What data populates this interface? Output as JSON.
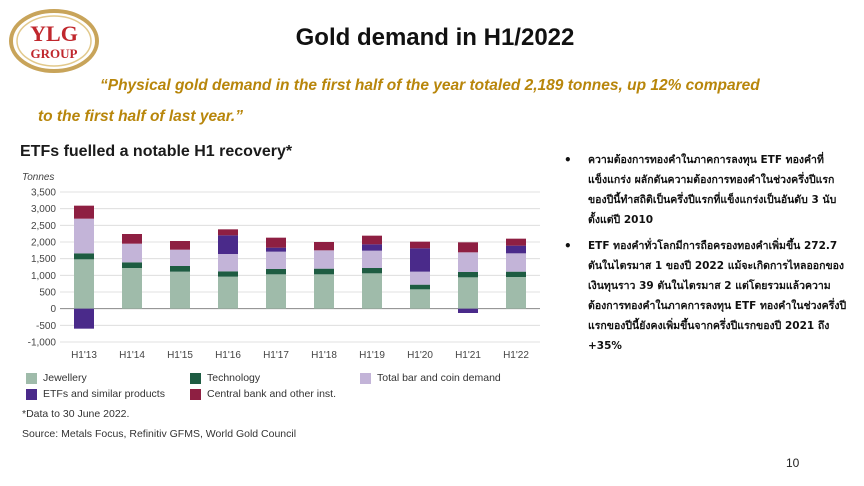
{
  "logo": {
    "line1": "YLG",
    "line2": "GROUP",
    "ring_color": "#c8a45a",
    "text_color": "#c0272d"
  },
  "header": {
    "title": "Gold demand  in H1/2022"
  },
  "quote": {
    "line1": "“Physical gold demand in the first half of the year totaled 2,189 tonnes, up 12% compared",
    "line2": "to the first half of last year.”"
  },
  "chart_title": "ETFs fuelled a notable H1 recovery*",
  "chart_data": {
    "type": "bar",
    "stacked": true,
    "ylabel": "Tonnes",
    "ylim": [
      -1000,
      3500
    ],
    "yticks": [
      3500,
      3000,
      2500,
      2000,
      1500,
      1000,
      500,
      0,
      -500,
      -1000
    ],
    "ytick_labels": [
      "3,500",
      "3,000",
      "2,500",
      "2,000",
      "1,500",
      "1,000",
      "500",
      "0",
      "-500",
      "-1,000"
    ],
    "categories": [
      "H1'13",
      "H1'14",
      "H1'15",
      "H1'16",
      "H1'17",
      "H1'18",
      "H1'19",
      "H1'20",
      "H1'21",
      "H1'22"
    ],
    "series": [
      {
        "name": "Jewellery",
        "color": "#9fbbaa",
        "values": [
          1480,
          1220,
          1110,
          960,
          1030,
          1030,
          1060,
          580,
          940,
          950
        ]
      },
      {
        "name": "Technology",
        "color": "#1e5c42",
        "values": [
          180,
          170,
          170,
          160,
          160,
          170,
          160,
          140,
          160,
          160
        ]
      },
      {
        "name": "Total bar and coin demand",
        "color": "#c3b4d8",
        "values": [
          1040,
          560,
          490,
          520,
          520,
          550,
          520,
          390,
          590,
          550
        ]
      },
      {
        "name": "ETFs and similar products",
        "color": "#4a2a8a",
        "values": [
          -600,
          0,
          0,
          560,
          120,
          0,
          190,
          700,
          -130,
          230
        ]
      },
      {
        "name": "Central bank and other inst.",
        "color": "#8e1f42",
        "values": [
          390,
          290,
          260,
          180,
          300,
          250,
          260,
          200,
          300,
          210
        ]
      }
    ],
    "grid": true
  },
  "legend": {
    "items": [
      {
        "label": "Jewellery",
        "color": "#9fbbaa"
      },
      {
        "label": "Technology",
        "color": "#1e5c42"
      },
      {
        "label": "Total bar and coin demand",
        "color": "#c3b4d8"
      },
      {
        "label": "ETFs and similar products",
        "color": "#4a2a8a"
      },
      {
        "label": "Central bank and other inst.",
        "color": "#8e1f42"
      }
    ]
  },
  "footnote": "*Data to 30 June 2022.",
  "source": "Source: Metals Focus, Refinitiv GFMS, World Gold Council",
  "bullets": [
    {
      "dot": "•",
      "text": "ความต้องการทองคำในภาคการลงทุน ETF ทองคำที่แข็งแกร่ง ผลักดันความต้องการทองคำในช่วงครึ่งปีแรกของปีนี้ทำสถิติเป็นครึ่งปีแรกที่แข็งแกร่งเป็นอันดับ 3 นับตั้งแต่ปี 2010"
    },
    {
      "dot": "•",
      "text": "ETF ทองคำทั่วโลกมีการถือครองทองคำเพิ่มขึ้น 272.7 ตันในไตรมาส 1 ของปี 2022 แม้จะเกิดการไหลออกของเงินทุนราว 39 ตันในไตรมาส 2 แต่โดยรวมแล้วความต้องการทองคำในภาคการลงทุน ETF ทองคำในช่วงครึ่งปีแรกของปีนี้ยังคงเพิ่มขึ้นจากครึ่งปีแรกของปี 2021 ถึง +35%"
    }
  ],
  "page_number": "10"
}
